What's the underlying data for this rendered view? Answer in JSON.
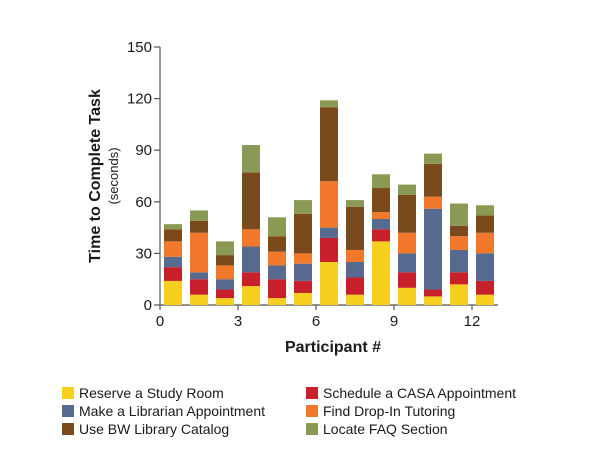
{
  "chart_data": {
    "type": "bar",
    "stacked": true,
    "ylabel": "Time to Complete Task",
    "ylabel_sub": "(seconds)",
    "xlabel": "Participant #",
    "ylim": [
      0,
      150
    ],
    "yticks": [
      0,
      30,
      60,
      90,
      120,
      150
    ],
    "xticks": [
      0,
      3,
      6,
      9,
      12
    ],
    "grid": false,
    "legend_position": "bottom",
    "categories": [
      1,
      2,
      3,
      4,
      5,
      6,
      7,
      8,
      9,
      10,
      11,
      12,
      13
    ],
    "series": [
      {
        "name": "Reserve a Study Room",
        "color": "#f7cf1f",
        "values": [
          14,
          6,
          4,
          11,
          4,
          7,
          25,
          6,
          37,
          10,
          5,
          12,
          6
        ]
      },
      {
        "name": "Schedule a CASA Appointment",
        "color": "#c8202a",
        "values": [
          8,
          9,
          5,
          8,
          11,
          7,
          14,
          10,
          7,
          9,
          4,
          7,
          8
        ]
      },
      {
        "name": "Make a Librarian Appointment",
        "color": "#566b8f",
        "values": [
          6,
          4,
          6,
          15,
          8,
          10,
          6,
          9,
          6,
          11,
          47,
          13,
          16
        ]
      },
      {
        "name": "Find Drop-In Tutoring",
        "color": "#f2782c",
        "values": [
          9,
          23,
          8,
          10,
          8,
          6,
          27,
          7,
          4,
          12,
          7,
          8,
          12
        ]
      },
      {
        "name": "Use BW Library Catalog",
        "color": "#7a4a1c",
        "values": [
          7,
          7,
          6,
          33,
          9,
          23,
          43,
          25,
          14,
          22,
          19,
          6,
          10
        ]
      },
      {
        "name": "Locate FAQ Section",
        "color": "#8a9954",
        "values": [
          3,
          6,
          8,
          16,
          11,
          8,
          4,
          4,
          8,
          6,
          6,
          13,
          6
        ]
      }
    ]
  }
}
